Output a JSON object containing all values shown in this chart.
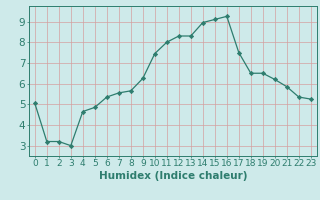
{
  "x": [
    0,
    1,
    2,
    3,
    4,
    5,
    6,
    7,
    8,
    9,
    10,
    11,
    12,
    13,
    14,
    15,
    16,
    17,
    18,
    19,
    20,
    21,
    22,
    23
  ],
  "y": [
    5.05,
    3.2,
    3.2,
    3.0,
    4.65,
    4.85,
    5.35,
    5.55,
    5.65,
    6.25,
    7.45,
    8.0,
    8.3,
    8.3,
    8.95,
    9.1,
    9.25,
    7.5,
    6.5,
    6.5,
    6.2,
    5.85,
    5.35,
    5.25
  ],
  "xlabel": "Humidex (Indice chaleur)",
  "xlim": [
    -0.5,
    23.5
  ],
  "ylim": [
    2.5,
    9.75
  ],
  "yticks": [
    3,
    4,
    5,
    6,
    7,
    8,
    9
  ],
  "xticks": [
    0,
    1,
    2,
    3,
    4,
    5,
    6,
    7,
    8,
    9,
    10,
    11,
    12,
    13,
    14,
    15,
    16,
    17,
    18,
    19,
    20,
    21,
    22,
    23
  ],
  "line_color": "#2e7d6e",
  "marker_color": "#2e7d6e",
  "bg_color": "#ceeaea",
  "grid_color": "#d4a0a0",
  "axis_color": "#2e7d6e",
  "tick_label_color": "#2e7d6e",
  "xlabel_color": "#2e7d6e",
  "font_size_tick": 6.5,
  "font_size_xlabel": 7.5
}
